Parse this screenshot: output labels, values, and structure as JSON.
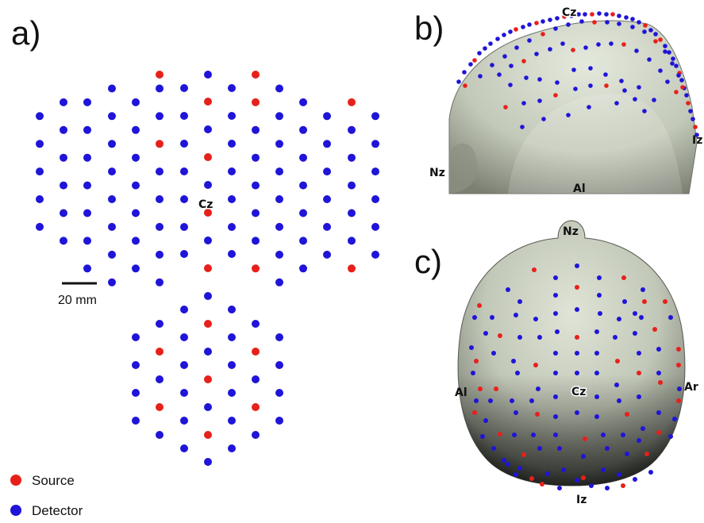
{
  "panels": {
    "a": {
      "letter": "a)",
      "center_label": "Cz",
      "scale_label": "20 mm"
    },
    "b": {
      "letter": "b)",
      "labels": {
        "cz": "Cz",
        "iz": "Iz",
        "nz": "Nz",
        "al": "Al"
      }
    },
    "c": {
      "letter": "c)",
      "labels": {
        "nz": "Nz",
        "cz": "Cz",
        "al": "Al",
        "ar": "Ar",
        "iz": "Iz"
      }
    }
  },
  "legend": {
    "source": {
      "label": "Source",
      "color": "#e8201a"
    },
    "detector": {
      "label": "Detector",
      "color": "#1f14d8"
    }
  },
  "colors": {
    "source": "#e8201a",
    "detector": "#1f14d8",
    "head": "#c9cec0"
  }
}
